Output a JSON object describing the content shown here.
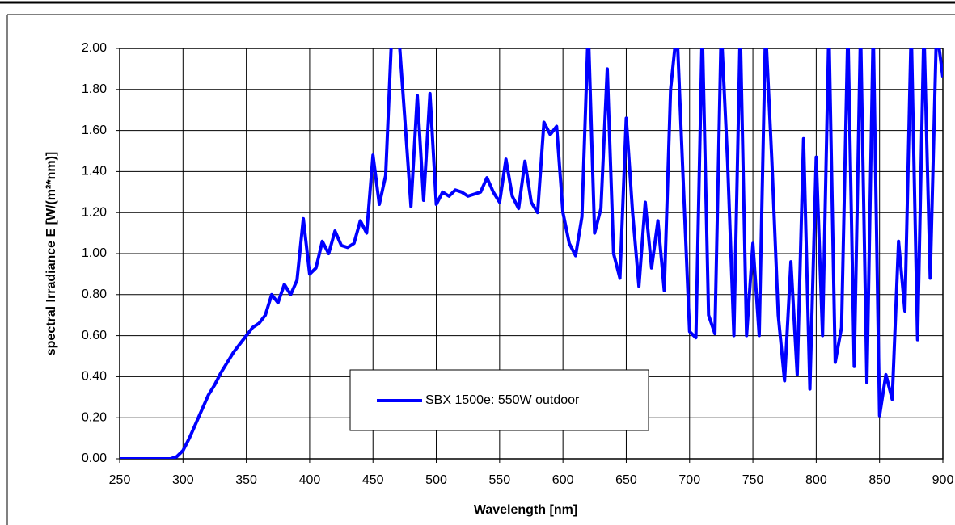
{
  "chart_data": {
    "type": "line",
    "xlabel": "Wavelength  [nm]",
    "ylabel": "spectral Irradiance E   [W/(m²*nm)]",
    "x": [
      250,
      255,
      260,
      265,
      270,
      275,
      280,
      285,
      290,
      295,
      300,
      305,
      310,
      315,
      320,
      325,
      330,
      335,
      340,
      345,
      350,
      355,
      360,
      365,
      370,
      375,
      380,
      385,
      390,
      395,
      400,
      405,
      410,
      415,
      420,
      425,
      430,
      435,
      440,
      445,
      450,
      455,
      460,
      465,
      470,
      475,
      480,
      485,
      490,
      495,
      500,
      505,
      510,
      515,
      520,
      525,
      530,
      535,
      540,
      545,
      550,
      555,
      560,
      565,
      570,
      575,
      580,
      585,
      590,
      595,
      600,
      605,
      610,
      615,
      620,
      625,
      630,
      635,
      640,
      645,
      650,
      655,
      660,
      665,
      670,
      675,
      680,
      685,
      690,
      695,
      700,
      705,
      710,
      715,
      720,
      725,
      730,
      735,
      740,
      745,
      750,
      755,
      760,
      765,
      770,
      775,
      780,
      785,
      790,
      795,
      800,
      805,
      810,
      815,
      820,
      825,
      830,
      835,
      840,
      845,
      850,
      855,
      860,
      865,
      870,
      875,
      880,
      885,
      890,
      895,
      900
    ],
    "series": [
      {
        "name": "SBX 1500e: 550W outdoor",
        "color": "#0000ff",
        "values": [
          0,
          0,
          0,
          0,
          0,
          0,
          0,
          0,
          0,
          0.01,
          0.04,
          0.1,
          0.17,
          0.24,
          0.31,
          0.36,
          0.42,
          0.47,
          0.52,
          0.56,
          0.6,
          0.64,
          0.66,
          0.7,
          0.8,
          0.76,
          0.85,
          0.8,
          0.87,
          1.17,
          0.9,
          0.93,
          1.06,
          1.0,
          1.11,
          1.04,
          1.03,
          1.05,
          1.16,
          1.1,
          1.48,
          1.24,
          1.38,
          2.1,
          2.1,
          1.67,
          1.23,
          1.77,
          1.26,
          1.78,
          1.24,
          1.3,
          1.28,
          1.31,
          1.3,
          1.28,
          1.29,
          1.3,
          1.37,
          1.3,
          1.25,
          1.46,
          1.28,
          1.22,
          1.45,
          1.25,
          1.2,
          1.64,
          1.58,
          1.62,
          1.2,
          1.05,
          0.99,
          1.18,
          2.1,
          1.1,
          1.22,
          1.9,
          1.0,
          0.88,
          1.66,
          1.2,
          0.84,
          1.25,
          0.93,
          1.16,
          0.82,
          1.8,
          2.1,
          1.35,
          0.62,
          0.59,
          2.1,
          0.7,
          0.61,
          2.1,
          1.45,
          0.6,
          2.1,
          0.6,
          1.05,
          0.6,
          2.1,
          1.45,
          0.7,
          0.38,
          0.96,
          0.41,
          1.56,
          0.34,
          1.47,
          0.6,
          2.1,
          0.47,
          0.64,
          2.1,
          0.45,
          2.1,
          0.37,
          2.1,
          0.21,
          0.41,
          0.29,
          1.06,
          0.72,
          2.1,
          0.58,
          2.1,
          0.88,
          2.1,
          1.86
        ]
      }
    ],
    "xlim": [
      250,
      900
    ],
    "xticks": [
      250,
      300,
      350,
      400,
      450,
      500,
      550,
      600,
      650,
      700,
      750,
      800,
      850,
      900
    ],
    "ylim": [
      0,
      2
    ],
    "yticks": [
      {
        "value": 0,
        "label": "0.00"
      },
      {
        "value": 0.2,
        "label": "0.20"
      },
      {
        "value": 0.4,
        "label": "0.40"
      },
      {
        "value": 0.6,
        "label": "0.60"
      },
      {
        "value": 0.8,
        "label": "0.80"
      },
      {
        "value": 1,
        "label": "1.00"
      },
      {
        "value": 1.2,
        "label": "1.20"
      },
      {
        "value": 1.4,
        "label": "1.40"
      },
      {
        "value": 1.6,
        "label": "1.60"
      },
      {
        "value": 1.8,
        "label": "1.80"
      },
      {
        "value": 2,
        "label": "2.00"
      }
    ],
    "grid": true
  }
}
